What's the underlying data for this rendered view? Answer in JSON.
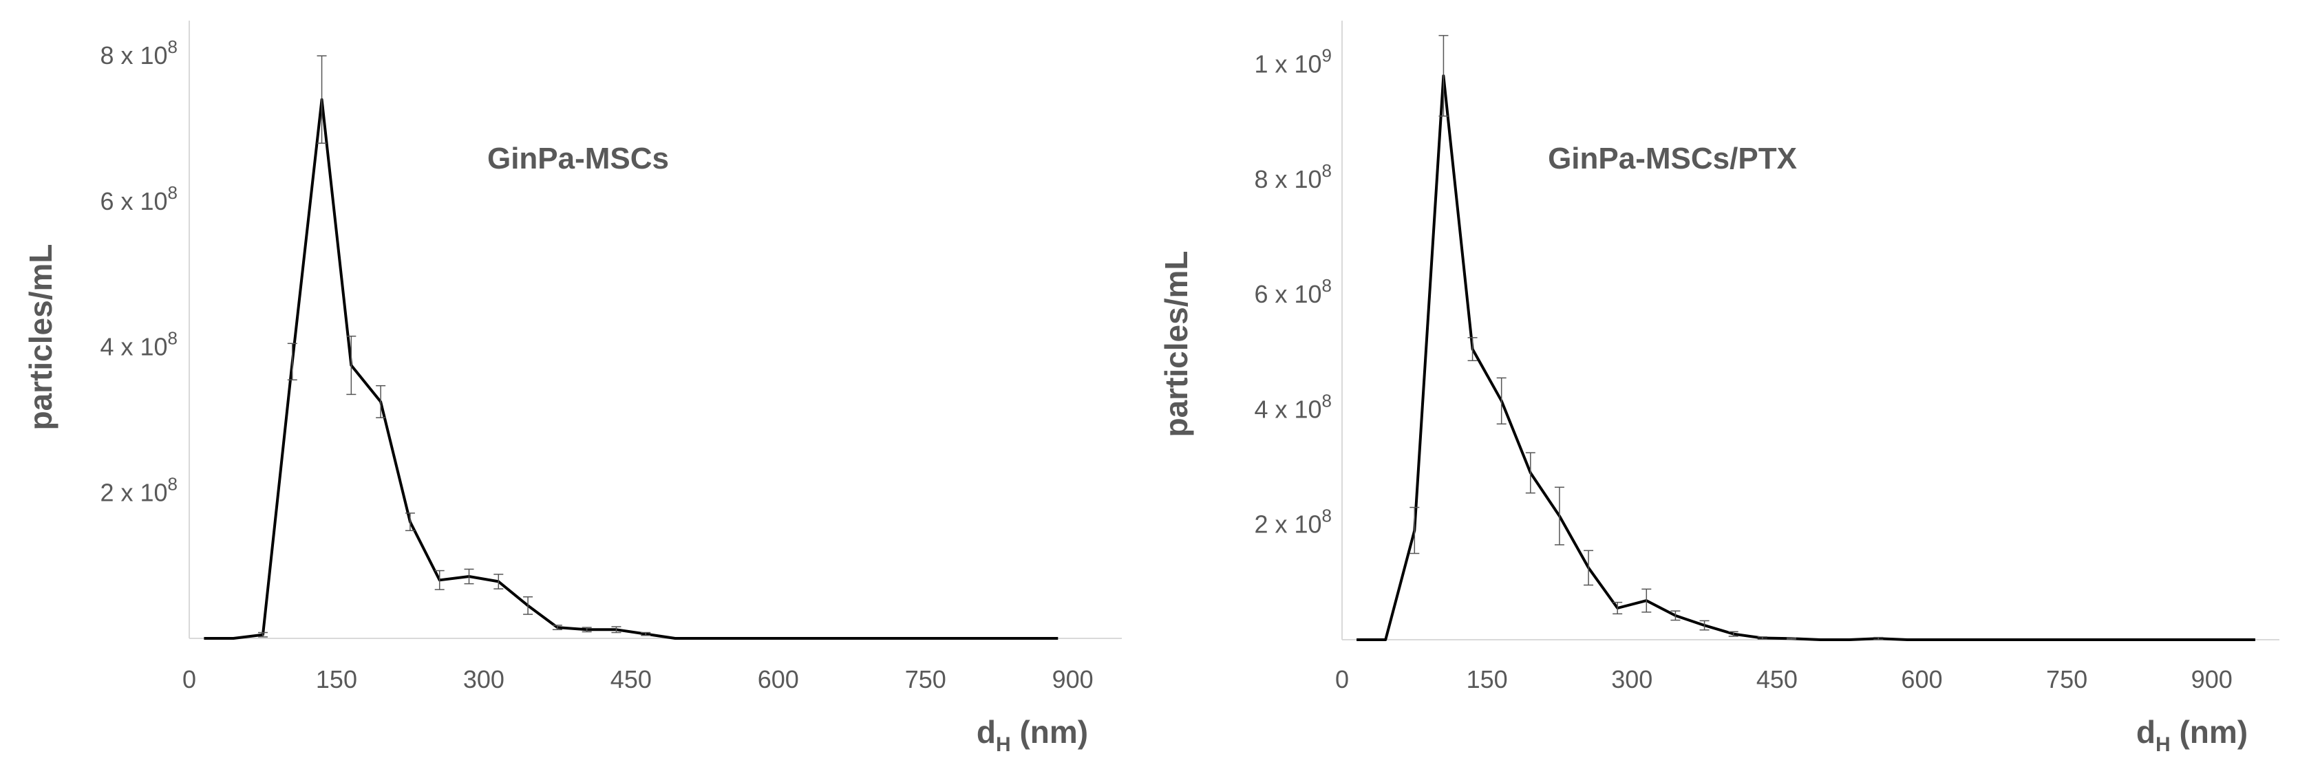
{
  "chart_data": [
    {
      "type": "line",
      "title": "GinPa-MSCs",
      "xlabel": {
        "main": "d",
        "sub": "H",
        "unit": " (nm)"
      },
      "ylabel": "particles/mL",
      "xlim": [
        0,
        950
      ],
      "ylim": [
        0,
        820000000
      ],
      "xticks": [
        {
          "value": 0,
          "label": "0"
        },
        {
          "value": 150,
          "label": "150"
        },
        {
          "value": 300,
          "label": "300"
        },
        {
          "value": 450,
          "label": "450"
        },
        {
          "value": 600,
          "label": "600"
        },
        {
          "value": 750,
          "label": "750"
        },
        {
          "value": 900,
          "label": "900"
        }
      ],
      "yticks": [
        {
          "value": 200000000,
          "coef": "2 x 10",
          "exp": "8"
        },
        {
          "value": 400000000,
          "coef": "4 x 10",
          "exp": "8"
        },
        {
          "value": 600000000,
          "coef": "6 x 10",
          "exp": "8"
        },
        {
          "value": 800000000,
          "coef": "8 x 10",
          "exp": "8"
        }
      ],
      "grid": false,
      "line_color": "#000000",
      "series": [
        {
          "x": [
            15,
            45,
            75,
            105,
            135,
            165,
            195,
            225,
            255,
            285,
            315,
            345,
            375,
            405,
            435,
            465,
            495,
            525,
            555,
            585,
            615,
            645,
            675,
            705,
            735,
            765,
            795,
            825,
            855,
            885
          ],
          "y": [
            0,
            0,
            5000000,
            380000000,
            740000000,
            375000000,
            325000000,
            160000000,
            80000000,
            85000000,
            78000000,
            45000000,
            15000000,
            12000000,
            12000000,
            6000000,
            0,
            0,
            0,
            0,
            0,
            0,
            0,
            0,
            0,
            0,
            0,
            0,
            0,
            0
          ],
          "err": [
            0,
            0,
            3000000,
            25000000,
            60000000,
            40000000,
            22000000,
            12000000,
            13000000,
            10000000,
            10000000,
            12000000,
            3000000,
            3000000,
            4000000,
            2000000,
            0,
            0,
            0,
            0,
            0,
            0,
            0,
            0,
            0,
            0,
            0,
            0,
            0,
            0
          ]
        }
      ]
    },
    {
      "type": "line",
      "title": "GinPa-MSCs/PTX",
      "xlabel": {
        "main": "d",
        "sub": "H",
        "unit": " (nm)"
      },
      "ylabel": "particles/mL",
      "xlim": [
        0,
        970
      ],
      "ylim": [
        0,
        1040000000
      ],
      "xticks": [
        {
          "value": 0,
          "label": "0"
        },
        {
          "value": 150,
          "label": "150"
        },
        {
          "value": 300,
          "label": "300"
        },
        {
          "value": 450,
          "label": "450"
        },
        {
          "value": 600,
          "label": "600"
        },
        {
          "value": 750,
          "label": "750"
        },
        {
          "value": 900,
          "label": "900"
        }
      ],
      "yticks": [
        {
          "value": 200000000,
          "coef": "2 x 10",
          "exp": "8"
        },
        {
          "value": 400000000,
          "coef": "4 x 10",
          "exp": "8"
        },
        {
          "value": 600000000,
          "coef": "6 x 10",
          "exp": "8"
        },
        {
          "value": 800000000,
          "coef": "8 x 10",
          "exp": "8"
        },
        {
          "value": 1000000000,
          "coef": "1 x 10",
          "exp": "9"
        }
      ],
      "grid": false,
      "line_color": "#000000",
      "series": [
        {
          "x": [
            15,
            45,
            75,
            105,
            135,
            165,
            195,
            225,
            255,
            285,
            315,
            345,
            375,
            405,
            435,
            465,
            495,
            525,
            555,
            585,
            615,
            645,
            675,
            705,
            735,
            765,
            795,
            825,
            855,
            885,
            915,
            945
          ],
          "y": [
            0,
            0,
            190000000,
            980000000,
            505000000,
            415000000,
            290000000,
            215000000,
            125000000,
            55000000,
            68000000,
            42000000,
            25000000,
            10000000,
            3000000,
            2000000,
            0,
            0,
            2000000,
            0,
            0,
            0,
            0,
            0,
            0,
            0,
            0,
            0,
            0,
            0,
            0,
            0
          ],
          "err": [
            0,
            0,
            40000000,
            70000000,
            20000000,
            40000000,
            35000000,
            50000000,
            30000000,
            10000000,
            20000000,
            8000000,
            8000000,
            4000000,
            2000000,
            1000000,
            0,
            0,
            2000000,
            0,
            0,
            0,
            0,
            0,
            0,
            0,
            0,
            0,
            0,
            0,
            0,
            0
          ]
        }
      ]
    }
  ]
}
